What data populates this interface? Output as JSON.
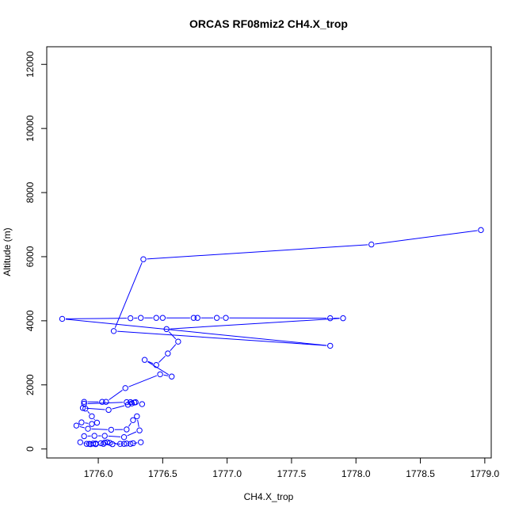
{
  "chart_data": {
    "type": "line",
    "title": "ORCAS RF08miz2 CH4.X_trop",
    "xlabel": "CH4.X_trop",
    "ylabel": "Altitude (m)",
    "xlim": [
      1775.6,
      1779.05
    ],
    "ylim": [
      -280,
      12550
    ],
    "x_ticks": [
      1776.0,
      1776.5,
      1777.0,
      1777.5,
      1778.0,
      1778.5,
      1779.0
    ],
    "x_tick_labels": [
      "1776.0",
      "1776.5",
      "1777.0",
      "1777.5",
      "1778.0",
      "1778.5",
      "1779.0"
    ],
    "y_ticks": [
      0,
      2000,
      4000,
      6000,
      8000,
      10000,
      12000
    ],
    "y_tick_labels": [
      "0",
      "2000",
      "4000",
      "6000",
      "8000",
      "10000",
      "12000"
    ],
    "grid": false,
    "color": "#0000ff",
    "series": [
      {
        "points": [
          [
            1778.97,
            6830
          ],
          [
            1778.12,
            6380
          ],
          [
            1776.35,
            5920
          ],
          [
            1776.12,
            3680
          ],
          [
            1777.8,
            3220
          ],
          [
            1775.72,
            4060
          ],
          [
            1776.25,
            4080
          ],
          [
            1776.33,
            4090
          ],
          [
            1776.45,
            4090
          ],
          [
            1776.5,
            4090
          ],
          [
            1776.74,
            4090
          ],
          [
            1776.77,
            4090
          ],
          [
            1776.92,
            4090
          ],
          [
            1776.99,
            4090
          ],
          [
            1777.8,
            4080
          ],
          [
            1777.9,
            4080
          ],
          [
            1776.53,
            3740
          ],
          [
            1776.62,
            3350
          ],
          [
            1776.54,
            2980
          ],
          [
            1776.45,
            2620
          ],
          [
            1776.36,
            2780
          ],
          [
            1776.57,
            2260
          ],
          [
            1776.48,
            2330
          ],
          [
            1776.21,
            1900
          ],
          [
            1776.06,
            1470
          ],
          [
            1776.03,
            1470
          ],
          [
            1775.89,
            1470
          ],
          [
            1775.89,
            1410
          ],
          [
            1776.22,
            1460
          ],
          [
            1776.29,
            1460
          ],
          [
            1776.34,
            1400
          ],
          [
            1776.28,
            1450
          ],
          [
            1776.26,
            1420
          ],
          [
            1776.25,
            1460
          ],
          [
            1776.23,
            1380
          ],
          [
            1776.08,
            1220
          ],
          [
            1775.88,
            1280
          ],
          [
            1775.9,
            1260
          ],
          [
            1775.95,
            1020
          ],
          [
            1775.99,
            820
          ],
          [
            1775.95,
            780
          ],
          [
            1775.87,
            830
          ],
          [
            1775.83,
            730
          ],
          [
            1775.92,
            630
          ],
          [
            1776.1,
            600
          ],
          [
            1776.22,
            610
          ],
          [
            1776.27,
            900
          ],
          [
            1776.3,
            1020
          ],
          [
            1776.32,
            580
          ],
          [
            1776.2,
            370
          ],
          [
            1776.05,
            410
          ],
          [
            1775.97,
            410
          ],
          [
            1775.89,
            400
          ],
          [
            1775.86,
            210
          ],
          [
            1775.93,
            160
          ],
          [
            1775.96,
            170
          ],
          [
            1775.98,
            170
          ],
          [
            1776.02,
            180
          ],
          [
            1776.05,
            200
          ],
          [
            1776.07,
            210
          ],
          [
            1776.09,
            190
          ],
          [
            1776.17,
            160
          ],
          [
            1776.22,
            170
          ],
          [
            1776.27,
            180
          ],
          [
            1776.33,
            210
          ],
          [
            1776.25,
            160
          ],
          [
            1776.2,
            160
          ],
          [
            1776.11,
            150
          ],
          [
            1776.04,
            160
          ],
          [
            1775.98,
            150
          ],
          [
            1775.94,
            150
          ],
          [
            1775.91,
            160
          ]
        ]
      }
    ]
  }
}
